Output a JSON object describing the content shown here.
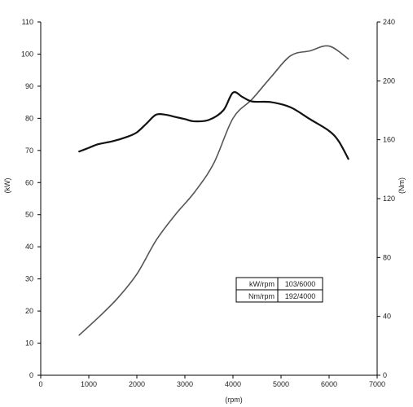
{
  "chart_data": {
    "type": "line",
    "xlabel": "(rpm)",
    "ylabel_left": "(kW)",
    "ylabel_right": "(Nm)",
    "xlim": [
      0,
      7000
    ],
    "ylim_left": [
      0,
      110
    ],
    "ylim_right": [
      0,
      240
    ],
    "x_ticks": [
      0,
      1000,
      2000,
      3000,
      4000,
      5000,
      6000,
      7000
    ],
    "y_left_ticks": [
      0,
      10,
      20,
      30,
      40,
      50,
      60,
      70,
      80,
      90,
      100,
      110
    ],
    "y_right_ticks": [
      0,
      40,
      80,
      120,
      160,
      200,
      240
    ],
    "grid": false,
    "series": [
      {
        "axis": "left",
        "color": "#555555",
        "points": [
          [
            800,
            12.5
          ],
          [
            1200,
            18
          ],
          [
            1600,
            24
          ],
          [
            2000,
            31.5
          ],
          [
            2400,
            42
          ],
          [
            2800,
            50
          ],
          [
            3200,
            57
          ],
          [
            3600,
            66
          ],
          [
            4000,
            80
          ],
          [
            4400,
            86
          ],
          [
            4800,
            93
          ],
          [
            5200,
            99.5
          ],
          [
            5600,
            101
          ],
          [
            6000,
            102.5
          ],
          [
            6400,
            98.5
          ]
        ]
      },
      {
        "axis": "right",
        "color": "#111111",
        "points": [
          [
            800,
            152
          ],
          [
            1000,
            154.5
          ],
          [
            1200,
            157
          ],
          [
            1500,
            159
          ],
          [
            1800,
            162
          ],
          [
            2000,
            165
          ],
          [
            2200,
            171
          ],
          [
            2400,
            177
          ],
          [
            2600,
            177
          ],
          [
            2800,
            175.5
          ],
          [
            3000,
            174
          ],
          [
            3200,
            172.5
          ],
          [
            3500,
            173.5
          ],
          [
            3800,
            180
          ],
          [
            4000,
            192
          ],
          [
            4200,
            189
          ],
          [
            4400,
            186
          ],
          [
            4800,
            185.5
          ],
          [
            5200,
            182
          ],
          [
            5600,
            174
          ],
          [
            6000,
            166
          ],
          [
            6200,
            159
          ],
          [
            6400,
            147
          ]
        ]
      }
    ],
    "table": {
      "rows": [
        [
          "kW/rpm",
          "103/6000"
        ],
        [
          "Nm/rpm",
          "192/4000"
        ]
      ]
    }
  }
}
